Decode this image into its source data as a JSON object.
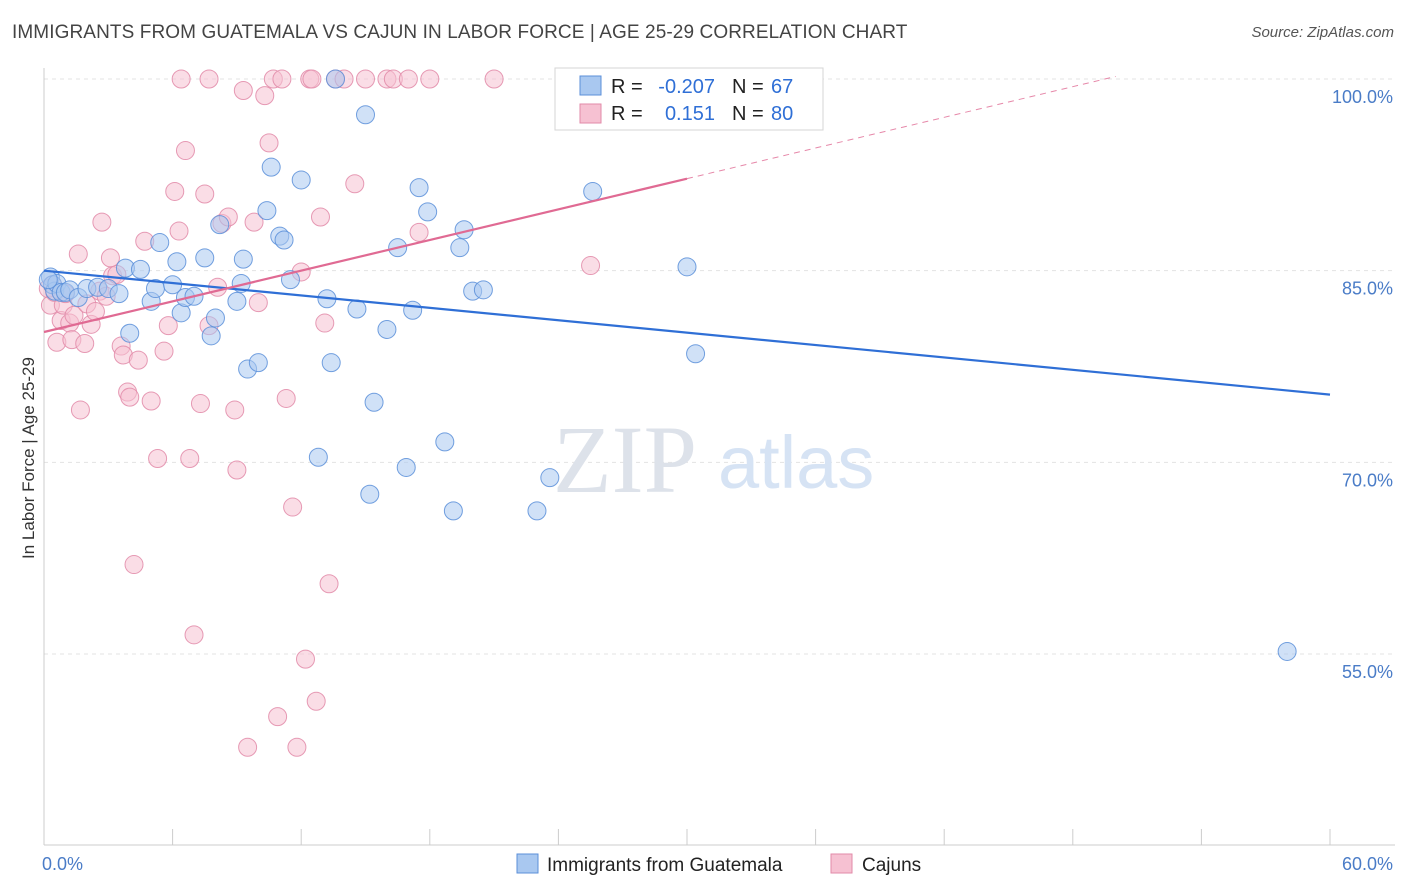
{
  "title": "IMMIGRANTS FROM GUATEMALA VS CAJUN IN LABOR FORCE | AGE 25-29 CORRELATION CHART",
  "source": "Source: ZipAtlas.com",
  "watermark": {
    "zip": "ZIP",
    "atlas": "atlas"
  },
  "colors": {
    "series1_fill": "#a9c8f0",
    "series1_stroke": "#5b8fd9",
    "series1_line": "#2f6fd6",
    "series2_fill": "#f6c1d2",
    "series2_stroke": "#e28aa8",
    "series2_line": "#e06a93",
    "tick_text": "#4a7cc7",
    "grid": "#e3e3e3"
  },
  "legend": {
    "rows": [
      {
        "r_label": "R =",
        "r_value": "-0.207",
        "n_label": "N =",
        "n_value": "67"
      },
      {
        "r_label": "R =",
        "r_value": "0.151",
        "n_label": "N =",
        "n_value": "80"
      }
    ]
  },
  "chart_data": {
    "type": "scatter",
    "title": "IMMIGRANTS FROM GUATEMALA VS CAJUN IN LABOR FORCE | AGE 25-29 CORRELATION CHART",
    "xlabel": "",
    "ylabel": "In Labor Force | Age 25-29",
    "xlim": [
      0,
      60
    ],
    "ylim": [
      40,
      102
    ],
    "x_tick_labels": [
      {
        "value": 0,
        "label": "0.0%"
      },
      {
        "value": 60,
        "label": "60.0%"
      }
    ],
    "y_tick_labels": [
      {
        "value": 100,
        "label": "100.0%"
      },
      {
        "value": 85,
        "label": "85.0%"
      },
      {
        "value": 70,
        "label": "70.0%"
      },
      {
        "value": 55,
        "label": "55.0%"
      }
    ],
    "grid": true,
    "legend_position": "top-center",
    "series": [
      {
        "name": "Immigrants from Guatemala",
        "r": -0.207,
        "n": 67,
        "trend": {
          "x0": 0,
          "y0": 85.0,
          "x1": 60,
          "y1": 75.3
        },
        "points": [
          [
            0.3,
            84.5
          ],
          [
            0.4,
            83.9
          ],
          [
            0.5,
            83.4
          ],
          [
            0.6,
            84.0
          ],
          [
            0.8,
            83.3
          ],
          [
            1.0,
            83.3
          ],
          [
            1.2,
            83.5
          ],
          [
            1.6,
            82.9
          ],
          [
            2.0,
            83.6
          ],
          [
            2.5,
            83.7
          ],
          [
            3.0,
            83.6
          ],
          [
            3.5,
            83.2
          ],
          [
            3.8,
            85.2
          ],
          [
            4.0,
            80.1
          ],
          [
            4.5,
            85.1
          ],
          [
            5.0,
            82.6
          ],
          [
            5.2,
            83.6
          ],
          [
            5.4,
            87.2
          ],
          [
            6.0,
            83.9
          ],
          [
            6.2,
            85.7
          ],
          [
            6.4,
            81.7
          ],
          [
            6.6,
            82.9
          ],
          [
            7.0,
            83.0
          ],
          [
            7.5,
            86.0
          ],
          [
            7.8,
            79.9
          ],
          [
            8.0,
            81.3
          ],
          [
            8.2,
            88.6
          ],
          [
            9.0,
            82.6
          ],
          [
            9.2,
            84.0
          ],
          [
            9.3,
            85.9
          ],
          [
            9.5,
            77.3
          ],
          [
            10.0,
            77.8
          ],
          [
            10.4,
            89.7
          ],
          [
            10.6,
            93.1
          ],
          [
            11.0,
            87.7
          ],
          [
            11.2,
            87.4
          ],
          [
            11.5,
            84.3
          ],
          [
            12.0,
            92.1
          ],
          [
            12.8,
            70.4
          ],
          [
            13.2,
            82.8
          ],
          [
            13.4,
            77.8
          ],
          [
            13.6,
            100.0
          ],
          [
            14.6,
            82.0
          ],
          [
            15.0,
            97.2
          ],
          [
            15.2,
            67.5
          ],
          [
            15.4,
            74.7
          ],
          [
            16.0,
            80.4
          ],
          [
            16.5,
            86.8
          ],
          [
            16.9,
            69.6
          ],
          [
            17.2,
            81.9
          ],
          [
            17.5,
            91.5
          ],
          [
            17.9,
            89.6
          ],
          [
            18.7,
            71.6
          ],
          [
            19.1,
            66.2
          ],
          [
            19.4,
            86.8
          ],
          [
            19.6,
            88.2
          ],
          [
            20.0,
            83.4
          ],
          [
            20.5,
            83.5
          ],
          [
            23.0,
            66.2
          ],
          [
            23.6,
            68.8
          ],
          [
            25.6,
            91.2
          ],
          [
            30.0,
            85.3
          ],
          [
            30.4,
            78.5
          ],
          [
            32.2,
            100.0
          ],
          [
            33.9,
            100.0
          ],
          [
            58.0,
            55.2
          ],
          [
            0.2,
            84.3
          ]
        ]
      },
      {
        "name": "Cajuns",
        "r": 0.151,
        "n": 80,
        "trend": {
          "x0": 0,
          "y0": 80.2,
          "x1": 30,
          "y1": 92.2
        },
        "trend_dashed": {
          "x0": 30,
          "y0": 92.2,
          "x1": 50,
          "y1": 100.2
        },
        "points": [
          [
            0.2,
            83.6
          ],
          [
            0.3,
            82.3
          ],
          [
            0.4,
            83.9
          ],
          [
            0.5,
            83.3
          ],
          [
            0.6,
            79.4
          ],
          [
            0.8,
            81.1
          ],
          [
            0.9,
            82.3
          ],
          [
            1.0,
            83.2
          ],
          [
            1.2,
            80.9
          ],
          [
            1.3,
            79.6
          ],
          [
            1.4,
            81.5
          ],
          [
            1.6,
            86.3
          ],
          [
            1.7,
            74.1
          ],
          [
            1.9,
            79.3
          ],
          [
            2.0,
            82.4
          ],
          [
            2.2,
            80.8
          ],
          [
            2.4,
            81.8
          ],
          [
            2.6,
            83.4
          ],
          [
            2.7,
            88.8
          ],
          [
            2.9,
            83.0
          ],
          [
            3.1,
            86.0
          ],
          [
            3.2,
            84.6
          ],
          [
            3.4,
            84.7
          ],
          [
            3.6,
            79.1
          ],
          [
            3.7,
            78.4
          ],
          [
            3.9,
            75.5
          ],
          [
            4.0,
            75.1
          ],
          [
            4.2,
            62.0
          ],
          [
            4.4,
            78.0
          ],
          [
            4.7,
            87.3
          ],
          [
            5.0,
            74.8
          ],
          [
            5.3,
            70.3
          ],
          [
            5.6,
            78.7
          ],
          [
            5.8,
            80.7
          ],
          [
            6.1,
            91.2
          ],
          [
            6.3,
            88.1
          ],
          [
            6.6,
            94.4
          ],
          [
            6.8,
            70.3
          ],
          [
            7.0,
            56.5
          ],
          [
            7.3,
            74.6
          ],
          [
            7.5,
            91.0
          ],
          [
            7.7,
            80.7
          ],
          [
            8.1,
            83.7
          ],
          [
            8.3,
            88.7
          ],
          [
            8.6,
            89.2
          ],
          [
            8.9,
            74.1
          ],
          [
            9.0,
            69.4
          ],
          [
            9.3,
            99.1
          ],
          [
            9.5,
            47.7
          ],
          [
            9.8,
            88.8
          ],
          [
            10.0,
            82.5
          ],
          [
            10.3,
            98.7
          ],
          [
            10.5,
            95.0
          ],
          [
            10.7,
            100.0
          ],
          [
            10.9,
            50.1
          ],
          [
            11.1,
            100.0
          ],
          [
            11.3,
            75.0
          ],
          [
            11.6,
            66.5
          ],
          [
            11.8,
            47.7
          ],
          [
            12.0,
            84.9
          ],
          [
            12.2,
            54.6
          ],
          [
            12.4,
            100.0
          ],
          [
            12.7,
            51.3
          ],
          [
            12.9,
            89.2
          ],
          [
            13.1,
            80.9
          ],
          [
            13.3,
            60.5
          ],
          [
            13.6,
            100.0
          ],
          [
            14.0,
            100.0
          ],
          [
            14.5,
            91.8
          ],
          [
            15.0,
            100.0
          ],
          [
            16.0,
            100.0
          ],
          [
            16.3,
            100.0
          ],
          [
            17.0,
            100.0
          ],
          [
            17.5,
            88.0
          ],
          [
            18.0,
            100.0
          ],
          [
            21.0,
            100.0
          ],
          [
            25.5,
            85.4
          ],
          [
            6.4,
            100.0
          ],
          [
            12.5,
            100.0
          ],
          [
            7.7,
            100.0
          ]
        ]
      }
    ]
  }
}
